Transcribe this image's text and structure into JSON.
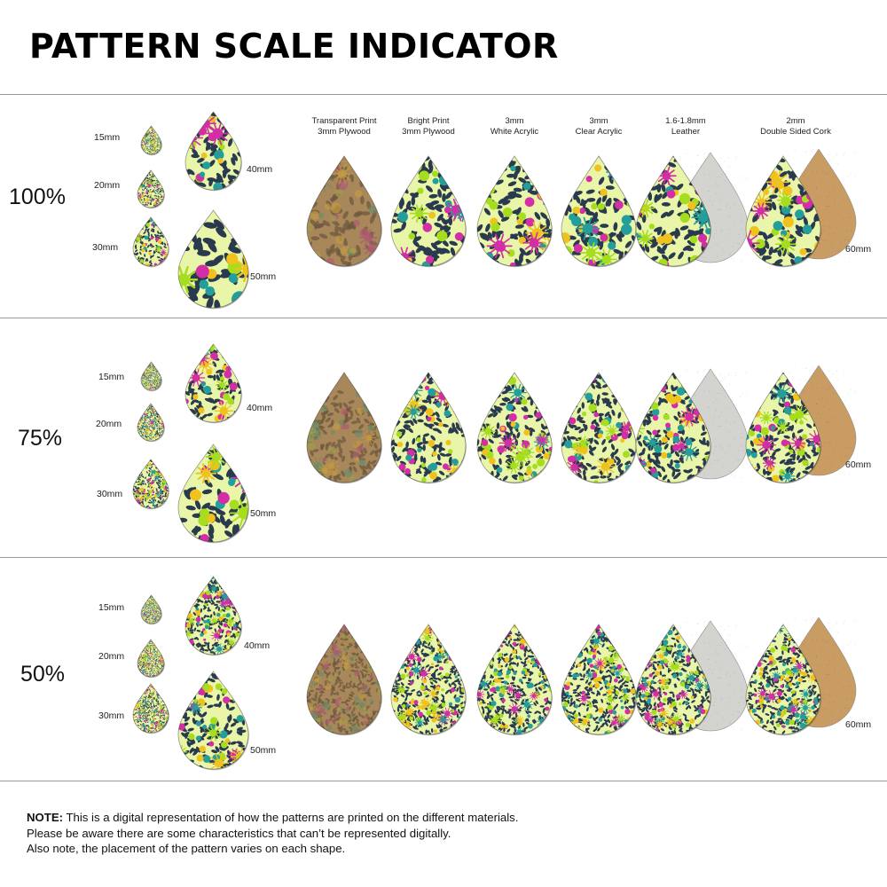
{
  "title": "PATTERN SCALE INDICATOR",
  "materials": [
    {
      "line1": "Transparent Print",
      "line2": "3mm Plywood",
      "backing": "none",
      "style": "plywood"
    },
    {
      "line1": "Bright Print",
      "line2": "3mm Plywood",
      "backing": "none",
      "style": "bright"
    },
    {
      "line1": "3mm",
      "line2": "White Acrylic",
      "backing": "none",
      "style": "bright"
    },
    {
      "line1": "3mm",
      "line2": "Clear Acrylic",
      "backing": "none",
      "style": "bright"
    },
    {
      "line1": "1.6-1.8mm",
      "line2": "Leather",
      "backing": "leather",
      "style": "bright"
    },
    {
      "line1": "2mm",
      "line2": "Double Sided Cork",
      "backing": "cork",
      "style": "bright"
    }
  ],
  "size_labels": {
    "s15": "15mm",
    "s20": "20mm",
    "s30": "30mm",
    "s40": "40mm",
    "s50": "50mm",
    "s60": "60mm"
  },
  "scales": [
    {
      "label": "100%",
      "pattern_scale": 1.0
    },
    {
      "label": "75%",
      "pattern_scale": 0.75
    },
    {
      "label": "50%",
      "pattern_scale": 0.5
    }
  ],
  "colors": {
    "base": "#e9f5a9",
    "dark": "#2a3a4e",
    "magenta": "#d42ea6",
    "teal": "#239e9a",
    "lime": "#a7dd1f",
    "yellow": "#f0c21d",
    "plywood": "#a9875a",
    "leather": "#d3d3d0",
    "cork": "#c99c63",
    "rule": "#9a9a9a"
  },
  "note": {
    "bold": "NOTE:",
    "line1": " This is a digital representation of how the patterns are printed on the different materials.",
    "line2": "Please be aware there are some characteristics that can’t be represented digitally.",
    "line3": "Also note, the placement of the pattern varies on each shape."
  }
}
